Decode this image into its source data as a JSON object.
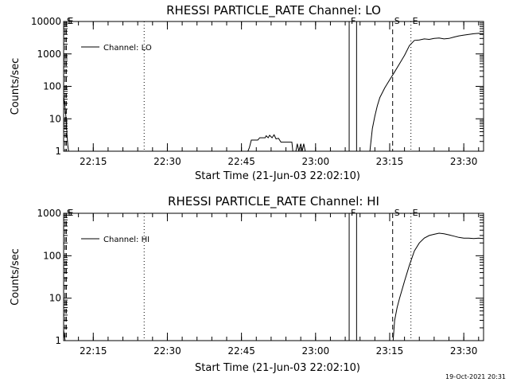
{
  "footer": {
    "timestamp": "19-Oct-2021 20:31"
  },
  "chart_data": [
    {
      "type": "line",
      "title": "RHESSI PARTICLE_RATE Channel: LO",
      "xlabel": "Start Time (21-Jun-03 22:02:10)",
      "ylabel": "Counts/sec",
      "yscale": "log",
      "ylim": [
        1,
        10000
      ],
      "xlim_minutes": [
        22.0,
        107.0
      ],
      "x_ticks": [
        {
          "v": 28,
          "label": "22:15"
        },
        {
          "v": 43,
          "label": "22:30"
        },
        {
          "v": 58,
          "label": "22:45"
        },
        {
          "v": 73,
          "label": "23:00"
        },
        {
          "v": 88,
          "label": "23:15"
        },
        {
          "v": 103,
          "label": "23:30"
        }
      ],
      "y_ticks": [
        {
          "v": 1,
          "label": "1"
        },
        {
          "v": 10,
          "label": "10"
        },
        {
          "v": 100,
          "label": "100"
        },
        {
          "v": 1000,
          "label": "1000"
        },
        {
          "v": 10000,
          "label": "10000"
        }
      ],
      "legend": {
        "label": "Channel: LO",
        "position": "top-left"
      },
      "markers": [
        {
          "x": 22.3,
          "style": "dash",
          "label": "S"
        },
        {
          "x": 22.55,
          "style": "dash",
          "label": "E"
        },
        {
          "x": 38.3,
          "style": "dot",
          "label": ""
        },
        {
          "x": 79.8,
          "style": "solid",
          "label": "F"
        },
        {
          "x": 81.3,
          "style": "solid",
          "label": ""
        },
        {
          "x": 88.6,
          "style": "dash",
          "label": "S"
        },
        {
          "x": 92.3,
          "style": "dot",
          "label": "E"
        },
        {
          "x": 109.6,
          "style": "dashdot",
          "label": ""
        }
      ],
      "segments": [
        [
          [
            22.0,
            50
          ],
          [
            22.2,
            30
          ],
          [
            22.4,
            15
          ],
          [
            22.55,
            8
          ],
          [
            22.7,
            3
          ],
          [
            22.85,
            1.5
          ],
          [
            23.0,
            1
          ]
        ],
        [
          [
            59.3,
            1
          ],
          [
            59.6,
            1.3
          ],
          [
            60.0,
            2.2
          ],
          [
            61.3,
            2.2
          ],
          [
            61.7,
            2.6
          ],
          [
            62.8,
            2.6
          ],
          [
            63.0,
            3.0
          ],
          [
            63.4,
            2.6
          ],
          [
            63.7,
            3.1
          ],
          [
            64.2,
            2.6
          ],
          [
            64.6,
            3.2
          ],
          [
            65.0,
            2.4
          ],
          [
            65.5,
            2.5
          ],
          [
            66.0,
            1.9
          ],
          [
            68.2,
            1.9
          ],
          [
            68.4,
            1
          ]
        ],
        [
          [
            69.0,
            1
          ],
          [
            69.3,
            1.7
          ],
          [
            69.6,
            1
          ],
          [
            70.0,
            1.7
          ],
          [
            70.3,
            1
          ],
          [
            70.6,
            1.7
          ],
          [
            70.9,
            1
          ]
        ],
        [
          [
            84.0,
            1
          ],
          [
            84.5,
            5
          ],
          [
            85.0,
            12
          ],
          [
            85.5,
            25
          ],
          [
            86.0,
            45
          ],
          [
            87.0,
            90
          ],
          [
            88.0,
            160
          ],
          [
            89.0,
            280
          ],
          [
            90.0,
            500
          ],
          [
            91.0,
            900
          ],
          [
            92.0,
            1800
          ],
          [
            93.0,
            2600
          ],
          [
            94.0,
            2700
          ],
          [
            95.0,
            2900
          ],
          [
            96.0,
            2800
          ],
          [
            97.0,
            3000
          ],
          [
            98.0,
            3100
          ],
          [
            99.0,
            2900
          ],
          [
            100.0,
            3000
          ],
          [
            101.0,
            3300
          ],
          [
            102.0,
            3600
          ],
          [
            103.0,
            3800
          ],
          [
            104.0,
            4000
          ],
          [
            105.0,
            4200
          ],
          [
            106.0,
            4300
          ],
          [
            107.0,
            4200
          ],
          [
            108.0,
            4000
          ],
          [
            108.8,
            3500
          ],
          [
            109.2,
            3000
          ],
          [
            109.6,
            2700
          ]
        ]
      ]
    },
    {
      "type": "line",
      "title": "RHESSI PARTICLE_RATE Channel: HI",
      "xlabel": "Start Time (21-Jun-03 22:02:10)",
      "ylabel": "Counts/sec",
      "yscale": "log",
      "ylim": [
        1,
        1000
      ],
      "xlim_minutes": [
        22.0,
        107.0
      ],
      "x_ticks": [
        {
          "v": 28,
          "label": "22:15"
        },
        {
          "v": 43,
          "label": "22:30"
        },
        {
          "v": 58,
          "label": "22:45"
        },
        {
          "v": 73,
          "label": "23:00"
        },
        {
          "v": 88,
          "label": "23:15"
        },
        {
          "v": 103,
          "label": "23:30"
        }
      ],
      "y_ticks": [
        {
          "v": 1,
          "label": "1"
        },
        {
          "v": 10,
          "label": "10"
        },
        {
          "v": 100,
          "label": "100"
        },
        {
          "v": 1000,
          "label": "1000"
        }
      ],
      "legend": {
        "label": "Channel: HI",
        "position": "top-left"
      },
      "markers": [
        {
          "x": 22.3,
          "style": "dash",
          "label": "S"
        },
        {
          "x": 22.55,
          "style": "dash",
          "label": "E"
        },
        {
          "x": 38.3,
          "style": "dot",
          "label": ""
        },
        {
          "x": 79.8,
          "style": "solid",
          "label": "F"
        },
        {
          "x": 81.3,
          "style": "solid",
          "label": ""
        },
        {
          "x": 88.6,
          "style": "dash",
          "label": "S"
        },
        {
          "x": 92.3,
          "style": "dot",
          "label": "E"
        },
        {
          "x": 109.6,
          "style": "dashdot",
          "label": ""
        }
      ],
      "segments": [
        [
          [
            22.0,
            1.8
          ],
          [
            22.15,
            1.3
          ],
          [
            22.3,
            1
          ]
        ],
        [
          [
            88.7,
            1
          ],
          [
            89.0,
            3
          ],
          [
            89.5,
            6
          ],
          [
            90.0,
            10
          ],
          [
            91.0,
            25
          ],
          [
            92.0,
            60
          ],
          [
            93.0,
            130
          ],
          [
            94.0,
            200
          ],
          [
            95.0,
            260
          ],
          [
            96.0,
            300
          ],
          [
            97.0,
            320
          ],
          [
            98.0,
            340
          ],
          [
            99.0,
            330
          ],
          [
            100.0,
            310
          ],
          [
            101.0,
            290
          ],
          [
            102.0,
            270
          ],
          [
            103.0,
            260
          ],
          [
            104.0,
            260
          ],
          [
            105.0,
            255
          ],
          [
            106.0,
            260
          ],
          [
            107.0,
            255
          ],
          [
            108.0,
            250
          ],
          [
            108.8,
            230
          ],
          [
            109.6,
            180
          ]
        ]
      ]
    }
  ]
}
